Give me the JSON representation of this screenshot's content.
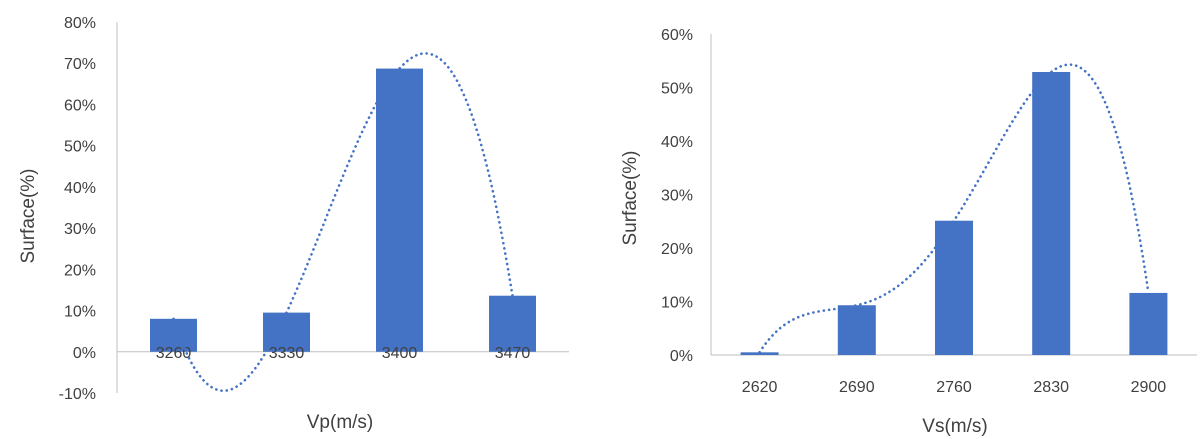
{
  "colors": {
    "bar": "#4472C4",
    "trend": "#4472C4",
    "axis": "#BFBFBF",
    "text": "#404040"
  },
  "chart_data": [
    {
      "type": "bar",
      "categories": [
        "3260",
        "3330",
        "3400",
        "3470"
      ],
      "values": [
        8,
        9.5,
        68.7,
        13.6
      ],
      "ylim": [
        -10,
        80
      ],
      "ytick_labels": [
        "-10%",
        "0%",
        "10%",
        "20%",
        "30%",
        "40%",
        "50%",
        "60%",
        "70%",
        "80%"
      ],
      "xlabel": "Vp(m/s)",
      "ylabel": "Surface(%)",
      "grid": false,
      "trendline": "polynomial, dotted"
    },
    {
      "type": "bar",
      "categories": [
        "2620",
        "2690",
        "2760",
        "2830",
        "2900"
      ],
      "values": [
        0.5,
        9.3,
        25.1,
        52.9,
        11.6
      ],
      "ylim": [
        0,
        60
      ],
      "ytick_labels": [
        "0%",
        "10%",
        "20%",
        "30%",
        "40%",
        "50%",
        "60%"
      ],
      "xlabel": "Vs(m/s)",
      "ylabel": "Surface(%)",
      "grid": false,
      "trendline": "polynomial, dotted"
    }
  ]
}
